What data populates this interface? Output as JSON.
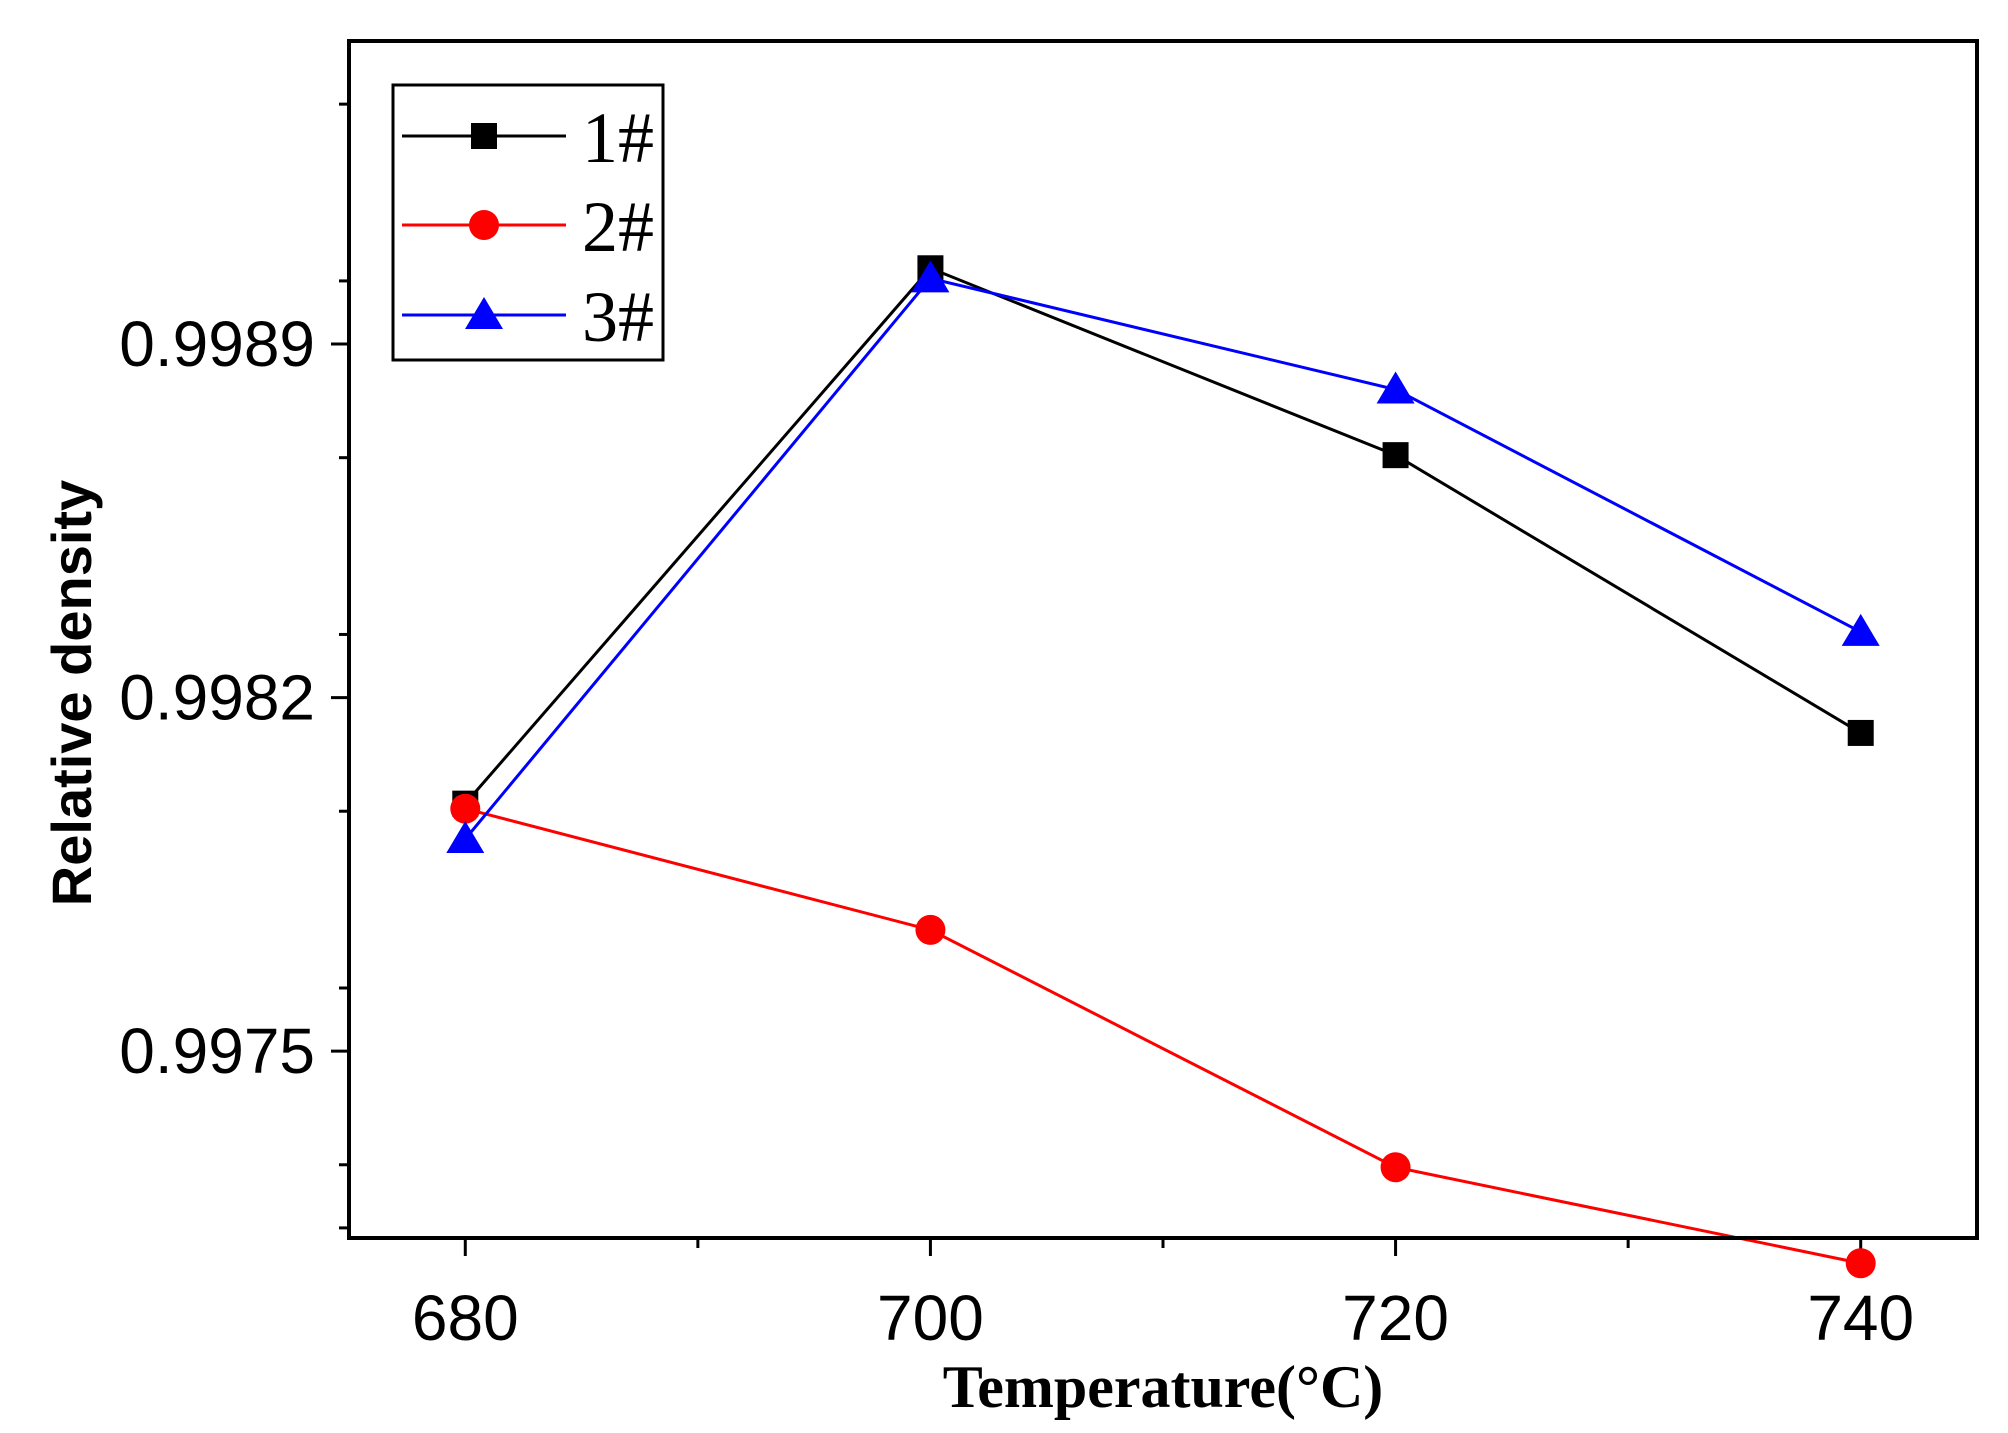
{
  "chart_data": {
    "type": "line",
    "title": "",
    "xlabel": "Temperature(°C)",
    "ylabel": "Relative density",
    "x": [
      680,
      700,
      720,
      740
    ],
    "xlim": [
      675,
      745
    ],
    "ylim": [
      0.99713,
      0.9995
    ],
    "x_ticks": [
      680,
      700,
      720,
      740
    ],
    "x_tick_labels": [
      "680",
      "700",
      "720",
      "740"
    ],
    "x_minor_ticks": [
      690,
      710,
      730
    ],
    "y_ticks": [
      0.9975,
      0.9982,
      0.9989
    ],
    "y_tick_labels": [
      "0.9975",
      "0.9982",
      "0.9989"
    ],
    "y_minor_ticks": [
      0.99715,
      0.997275,
      0.997625,
      0.997975,
      0.998325,
      0.998675,
      0.999025,
      0.999375
    ],
    "legend_position": "top-left",
    "grid": false,
    "series": [
      {
        "name": "1#",
        "color": "#000000",
        "marker": "square",
        "values": [
          0.99799,
          0.99905,
          0.99868,
          0.99813
        ]
      },
      {
        "name": "2#",
        "color": "#ff0000",
        "marker": "circle",
        "values": [
          0.99798,
          0.99774,
          0.99727,
          0.99708
        ]
      },
      {
        "name": "3#",
        "color": "#0000ff",
        "marker": "triangle",
        "values": [
          0.99792,
          0.99903,
          0.99881,
          0.99833
        ]
      }
    ]
  }
}
